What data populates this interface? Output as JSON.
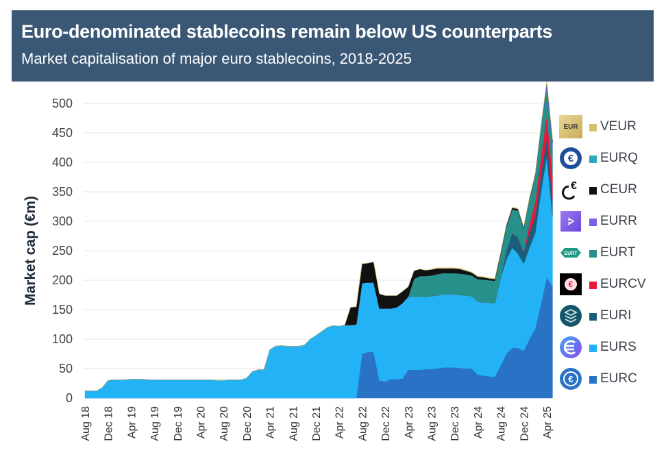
{
  "header": {
    "title": "Euro-denominated stablecoins remain below US counterparts",
    "subtitle": "Market capitalisation of major euro stablecoins, 2018-2025"
  },
  "chart_data": {
    "type": "area",
    "stacked": true,
    "title": "Euro-denominated stablecoins remain below US counterparts",
    "subtitle": "Market capitalisation of major euro stablecoins, 2018-2025",
    "xlabel": "",
    "ylabel": "Market cap (€m)",
    "ylim": [
      0,
      500
    ],
    "yticks": [
      0,
      50,
      100,
      150,
      200,
      250,
      300,
      350,
      400,
      450,
      500
    ],
    "grid": true,
    "legend_position": "right",
    "x_start": "Aug 18",
    "x_step": "1 month",
    "xtick_labels": [
      "Aug 18",
      "Dec 18",
      "Apr 19",
      "Aug 19",
      "Dec 19",
      "Apr 20",
      "Aug 20",
      "Dec 20",
      "Apr 21",
      "Aug 21",
      "Dec 21",
      "Apr 22",
      "Aug 22",
      "Dec 22",
      "Apr 23",
      "Aug 23",
      "Dec 23",
      "Apr 24",
      "Aug 24",
      "Dec 24",
      "Apr 25"
    ],
    "series": [
      {
        "name": "EURC",
        "color": "#2a72c6",
        "values": [
          0,
          0,
          0,
          0,
          0,
          0,
          0,
          0,
          0,
          0,
          0,
          0,
          0,
          0,
          0,
          0,
          0,
          0,
          0,
          0,
          0,
          0,
          0,
          0,
          0,
          0,
          0,
          0,
          0,
          0,
          0,
          0,
          0,
          0,
          0,
          0,
          0,
          0,
          0,
          0,
          0,
          0,
          0,
          0,
          0,
          0,
          0,
          0,
          75,
          78,
          78,
          30,
          28,
          32,
          32,
          33,
          48,
          48,
          48,
          49,
          49,
          50,
          52,
          52,
          52,
          51,
          50,
          50,
          40,
          38,
          37,
          36,
          55,
          75,
          85,
          85,
          80,
          100,
          118,
          160,
          205,
          190
        ]
      },
      {
        "name": "EURS",
        "color": "#22b2f5",
        "values": [
          12,
          12,
          12,
          18,
          30,
          31,
          31,
          31,
          32,
          32,
          32,
          31,
          31,
          31,
          31,
          31,
          31,
          31,
          31,
          31,
          31,
          31,
          31,
          30,
          30,
          31,
          31,
          31,
          34,
          45,
          48,
          48,
          82,
          88,
          89,
          88,
          88,
          88,
          90,
          100,
          106,
          113,
          120,
          123,
          122,
          124,
          124,
          125,
          120,
          118,
          118,
          122,
          124,
          120,
          122,
          128,
          124,
          124,
          124,
          123,
          124,
          124,
          124,
          124,
          124,
          124,
          124,
          123,
          124,
          124,
          125,
          125,
          148,
          160,
          170,
          160,
          148,
          155,
          162,
          190,
          205,
          118
        ]
      },
      {
        "name": "EURI",
        "color": "#1a5e7c",
        "values": [
          0,
          0,
          0,
          0,
          0,
          0,
          0,
          0,
          0,
          0,
          0,
          0,
          0,
          0,
          0,
          0,
          0,
          0,
          0,
          0,
          0,
          0,
          0,
          0,
          0,
          0,
          0,
          0,
          0,
          0,
          0,
          0,
          0,
          0,
          0,
          0,
          0,
          0,
          0,
          0,
          0,
          0,
          0,
          0,
          0,
          0,
          0,
          0,
          0,
          0,
          0,
          0,
          0,
          0,
          0,
          0,
          0,
          0,
          0,
          0,
          0,
          0,
          0,
          0,
          0,
          0,
          0,
          0,
          0,
          0,
          0,
          0,
          0,
          15,
          25,
          28,
          20,
          25,
          28,
          30,
          30,
          30
        ]
      },
      {
        "name": "EURCV",
        "color": "#e8183c",
        "values": [
          0,
          0,
          0,
          0,
          0,
          0,
          0,
          0,
          0,
          0,
          0,
          0,
          0,
          0,
          0,
          0,
          0,
          0,
          0,
          0,
          0,
          0,
          0,
          0,
          0,
          0,
          0,
          0,
          0,
          0,
          0,
          0,
          0,
          0,
          0,
          0,
          0,
          0,
          0,
          0,
          0,
          0,
          0,
          0,
          0,
          0,
          0,
          0,
          0,
          0,
          0,
          0,
          0,
          0,
          0,
          0,
          0,
          0,
          0,
          0,
          0,
          0,
          0,
          0,
          0,
          0,
          0,
          0,
          0,
          0,
          0,
          0,
          0,
          0,
          0,
          0,
          0,
          15,
          25,
          30,
          40,
          40
        ]
      },
      {
        "name": "EURT",
        "color": "#25918a",
        "values": [
          0,
          0,
          0,
          0,
          0,
          0,
          0,
          0,
          0,
          0,
          0,
          0,
          0,
          0,
          0,
          0,
          0,
          0,
          0,
          0,
          0,
          0,
          0,
          0,
          0,
          0,
          0,
          0,
          0,
          0,
          0,
          0,
          0,
          0,
          0,
          0,
          0,
          0,
          0,
          0,
          0,
          0,
          0,
          0,
          0,
          0,
          0,
          0,
          0,
          0,
          0,
          0,
          0,
          0,
          0,
          0,
          0,
          30,
          35,
          35,
          35,
          36,
          36,
          36,
          36,
          36,
          36,
          35,
          38,
          39,
          38,
          38,
          40,
          40,
          40,
          45,
          40,
          42,
          45,
          50,
          45,
          45
        ]
      },
      {
        "name": "EURR",
        "color": "#7d5ce8",
        "values": [
          0,
          0,
          0,
          0,
          0,
          0,
          0,
          0,
          0,
          0,
          0,
          0,
          0,
          0,
          0,
          0,
          0,
          0,
          0,
          0,
          0,
          0,
          0,
          0,
          0,
          0,
          0,
          0,
          0,
          0,
          0,
          0,
          0,
          0,
          0,
          0,
          0,
          0,
          0,
          0,
          0,
          0,
          0,
          0,
          0,
          0,
          0,
          0,
          0,
          0,
          0,
          0,
          0,
          0,
          0,
          0,
          0,
          0,
          0,
          0,
          0,
          0,
          0,
          0,
          0,
          0,
          0,
          0,
          0,
          0,
          0,
          0,
          0,
          0,
          0,
          0,
          0,
          0,
          0,
          0,
          8,
          12
        ]
      },
      {
        "name": "CEUR",
        "color": "#111111",
        "values": [
          0,
          0,
          0,
          0,
          0,
          0,
          0,
          0,
          0,
          0,
          0,
          0,
          0,
          0,
          0,
          0,
          0,
          0,
          0,
          0,
          0,
          0,
          0,
          0,
          0,
          0,
          0,
          0,
          0,
          0,
          0,
          0,
          0,
          0,
          0,
          0,
          0,
          0,
          0,
          0,
          0,
          0,
          0,
          0,
          0,
          0,
          30,
          30,
          33,
          33,
          35,
          25,
          22,
          22,
          20,
          20,
          17,
          14,
          12,
          10,
          10,
          10,
          8,
          8,
          8,
          8,
          6,
          5,
          4,
          4,
          3,
          3,
          3,
          3,
          3,
          3,
          2,
          2,
          2,
          2,
          2,
          2
        ]
      },
      {
        "name": "EURQ",
        "color": "#2ea9b7",
        "values": [
          0,
          0,
          0,
          0,
          0,
          0,
          0,
          0,
          0,
          0,
          0,
          0,
          0,
          0,
          0,
          0,
          0,
          0,
          0,
          0,
          0,
          0,
          0,
          0,
          0,
          0,
          0,
          0,
          0,
          0,
          0,
          0,
          0,
          0,
          0,
          0,
          0,
          0,
          0,
          0,
          0,
          0,
          0,
          0,
          0,
          0,
          0,
          0,
          0,
          0,
          0,
          0,
          0,
          0,
          0,
          0,
          0,
          0,
          0,
          0,
          0,
          0,
          0,
          0,
          0,
          0,
          0,
          0,
          0,
          0,
          0,
          0,
          0,
          0,
          0,
          0,
          0,
          0,
          0,
          0,
          2,
          3
        ]
      },
      {
        "name": "VEUR",
        "color": "#d8bf6c",
        "values": [
          0,
          0,
          0,
          0,
          0,
          0,
          0,
          0,
          0,
          0,
          0,
          0,
          0,
          0,
          0,
          0,
          0,
          0,
          0,
          0,
          0,
          0,
          0,
          0,
          0,
          0,
          0,
          0,
          0,
          0,
          0,
          0,
          0,
          0,
          0,
          0,
          0,
          0,
          0,
          0,
          0,
          0,
          0,
          0,
          0,
          0,
          0,
          0,
          0,
          0,
          0,
          0,
          0,
          0,
          0,
          0,
          0,
          0,
          0,
          0,
          1,
          1,
          1,
          1,
          1,
          1,
          1,
          1,
          1,
          1,
          1,
          1,
          1,
          1,
          1,
          1,
          1,
          1,
          1,
          1,
          1,
          1
        ]
      }
    ]
  },
  "legend": [
    {
      "name": "VEUR",
      "color": "#d8bf6c",
      "logo": "veur-logo"
    },
    {
      "name": "EURQ",
      "color": "#2ea9b7",
      "logo": "eurq-logo"
    },
    {
      "name": "CEUR",
      "color": "#111111",
      "logo": "ceur-logo"
    },
    {
      "name": "EURR",
      "color": "#7d5ce8",
      "logo": "eurr-logo"
    },
    {
      "name": "EURT",
      "color": "#25918a",
      "logo": "eurt-logo"
    },
    {
      "name": "EURCV",
      "color": "#e8183c",
      "logo": "eurcv-logo"
    },
    {
      "name": "EURI",
      "color": "#1a5e7c",
      "logo": "euri-logo"
    },
    {
      "name": "EURS",
      "color": "#22b2f5",
      "logo": "eurs-logo"
    },
    {
      "name": "EURC",
      "color": "#2a72c6",
      "logo": "eurc-logo"
    }
  ],
  "logo_text": {
    "veur": "EUR",
    "eurt": "EURT",
    "euro_sign": "€"
  }
}
